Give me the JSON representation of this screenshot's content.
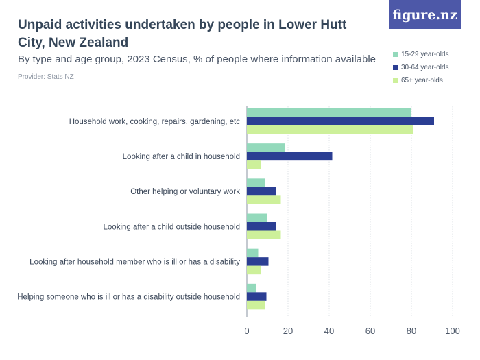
{
  "header": {
    "title": "Unpaid activities undertaken by people in Lower Hutt City, New Zealand",
    "subtitle": "By type and age group, 2023 Census, % of people where information available",
    "provider": "Provider: Stats NZ",
    "logo": "figure.nz"
  },
  "chart_data": {
    "type": "bar",
    "orientation": "horizontal",
    "categories": [
      "Household work, cooking, repairs, gardening, etc",
      "Looking after a child in household",
      "Other helping or voluntary work",
      "Looking after a child outside household",
      "Looking after household member who is ill or has a disability",
      "Helping someone who is ill or has a disability outside household"
    ],
    "series": [
      {
        "name": "15-29 year-olds",
        "color": "#93d9bb",
        "values": [
          80,
          18.5,
          9,
          10,
          5.5,
          4.5
        ]
      },
      {
        "name": "30-64 year-olds",
        "color": "#2b3e93",
        "values": [
          91,
          41.5,
          14,
          14,
          10.5,
          9.5
        ]
      },
      {
        "name": "65+ year-olds",
        "color": "#cdf09a",
        "values": [
          81,
          7,
          16.5,
          16.5,
          7,
          9
        ]
      }
    ],
    "xlim": [
      0,
      100
    ],
    "xticks": [
      0,
      20,
      40,
      60,
      80,
      100
    ],
    "grid": true,
    "legend_position": "top-right"
  }
}
